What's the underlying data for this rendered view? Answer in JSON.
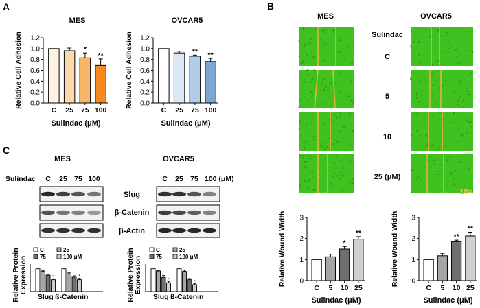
{
  "panels": {
    "a": {
      "letter": "A"
    },
    "b": {
      "letter": "B"
    },
    "c": {
      "letter": "C"
    }
  },
  "panel_b_images": {
    "col_mes": "MES",
    "col_ovcar5": "OVCAR5",
    "row_header": "Sulindac",
    "rows": [
      "C",
      "5",
      "10",
      "25 (μM)"
    ],
    "scale_label": "10×",
    "colors": {
      "field": "#3fc21f",
      "line": "#e6b43a"
    }
  },
  "panel_c_blots": {
    "col_mes": "MES",
    "col_ovcar5": "OVCAR5",
    "row_header": "Sulindac",
    "lanes_mes": [
      "C",
      "25",
      "75",
      "100"
    ],
    "lanes_ovcar5": [
      "C",
      "25",
      "75",
      "100 (μM)"
    ],
    "proteins": [
      "Slug",
      "β-Catenin",
      "β-Actin"
    ]
  },
  "chart_data": [
    {
      "id": "adh_mes",
      "type": "bar",
      "title": "MES",
      "categories": [
        "C",
        "25",
        "75",
        "100"
      ],
      "values": [
        1.0,
        0.96,
        0.83,
        0.69
      ],
      "errors": [
        0.0,
        0.05,
        0.09,
        0.12
      ],
      "significance": [
        "",
        "",
        "*",
        "**"
      ],
      "colors": [
        "#fdf1e1",
        "#fbd9ad",
        "#f9b66a",
        "#f4891f"
      ],
      "ylabel": "Relative Cell Adhesion",
      "xlabel": "Sulindac (μM)",
      "ylim": [
        0,
        1.2
      ],
      "yticks": [
        "0.0",
        "0.2",
        "0.4",
        "0.6",
        "0.8",
        "1.0",
        "1.2"
      ]
    },
    {
      "id": "adh_ovcar5",
      "type": "bar",
      "title": "OVCAR5",
      "categories": [
        "C",
        "25",
        "75",
        "100"
      ],
      "values": [
        1.0,
        0.92,
        0.86,
        0.76
      ],
      "errors": [
        0.0,
        0.03,
        0.02,
        0.06
      ],
      "significance": [
        "",
        "",
        "**",
        "**"
      ],
      "colors": [
        "#ffffff",
        "#d9e7f6",
        "#b2cde9",
        "#7ea6d2"
      ],
      "ylabel": "Relative Cell Adhesion",
      "xlabel": "Sulindac (μM)",
      "ylim": [
        0,
        1.2
      ],
      "yticks": [
        "0.0",
        "0.2",
        "0.4",
        "0.6",
        "0.8",
        "1.0",
        "1.2"
      ]
    },
    {
      "id": "wound_mes",
      "type": "bar",
      "categories": [
        "C",
        "5",
        "10",
        "25"
      ],
      "values": [
        1.0,
        1.13,
        1.5,
        1.97
      ],
      "errors": [
        0.0,
        0.12,
        0.12,
        0.12
      ],
      "significance": [
        "",
        "",
        "*",
        "**"
      ],
      "colors": [
        "#ffffff",
        "#a6a6a6",
        "#6f6f6f",
        "#d0d0d0"
      ],
      "ylabel": "Relative Wound Width",
      "xlabel": "Sulindac (μM)",
      "ylim": [
        0,
        3
      ],
      "yticks": [
        "0",
        "1",
        "2",
        "3"
      ]
    },
    {
      "id": "wound_ovcar5",
      "type": "bar",
      "categories": [
        "C",
        "5",
        "10",
        "25"
      ],
      "values": [
        1.0,
        1.18,
        1.85,
        2.12
      ],
      "errors": [
        0.0,
        0.1,
        0.07,
        0.18
      ],
      "significance": [
        "",
        "",
        "**",
        "**"
      ],
      "colors": [
        "#ffffff",
        "#a6a6a6",
        "#6f6f6f",
        "#d0d0d0"
      ],
      "ylabel": "Relative Wound Width",
      "xlabel": "Sulindac (μM)",
      "ylim": [
        0,
        3
      ],
      "yticks": [
        "0",
        "1",
        "2",
        "3"
      ]
    },
    {
      "id": "protein_mes",
      "type": "bar",
      "groups": [
        "Slug",
        "ß-Catenin"
      ],
      "series": [
        {
          "name": "C",
          "values": [
            1.0,
            1.0
          ],
          "errors": [
            0.0,
            0.0
          ],
          "color": "#ffffff"
        },
        {
          "name": "25",
          "values": [
            0.88,
            0.78
          ],
          "errors": [
            0.03,
            0.04
          ],
          "color": "#a6a6a6"
        },
        {
          "name": "75",
          "values": [
            0.72,
            0.63
          ],
          "errors": [
            0.04,
            0.06
          ],
          "color": "#6f6f6f"
        },
        {
          "name": "100 μM",
          "values": [
            0.52,
            0.52
          ],
          "errors": [
            0.04,
            0.06
          ],
          "color": "#d0d0d0"
        }
      ],
      "significance": [
        [
          "",
          "",
          "",
          "*"
        ],
        [
          "",
          "",
          "",
          "*"
        ]
      ],
      "legend": [
        "C",
        "25",
        "75",
        "100 μM"
      ],
      "ylabel": "Relative Protein Expression",
      "ylim": [
        0,
        1.2
      ]
    },
    {
      "id": "protein_ovcar5",
      "type": "bar",
      "groups": [
        "Slug",
        "ß-Catenin"
      ],
      "series": [
        {
          "name": "C",
          "values": [
            1.0,
            1.0
          ],
          "errors": [
            0.0,
            0.0
          ],
          "color": "#ffffff"
        },
        {
          "name": "25",
          "values": [
            0.9,
            0.88
          ],
          "errors": [
            0.03,
            0.05
          ],
          "color": "#a6a6a6"
        },
        {
          "name": "75",
          "values": [
            0.62,
            0.52
          ],
          "errors": [
            0.08,
            0.05
          ],
          "color": "#6f6f6f"
        },
        {
          "name": "100 μM",
          "values": [
            0.38,
            0.3
          ],
          "errors": [
            0.05,
            0.05
          ],
          "color": "#d0d0d0"
        }
      ],
      "significance": [
        [
          "",
          "",
          "",
          "*"
        ],
        [
          "",
          "",
          "",
          "*"
        ]
      ],
      "legend": [
        "C",
        "25",
        "75",
        "100 μM"
      ],
      "ylabel": "Relative Protein Expression",
      "ylim": [
        0,
        1.2
      ]
    }
  ]
}
